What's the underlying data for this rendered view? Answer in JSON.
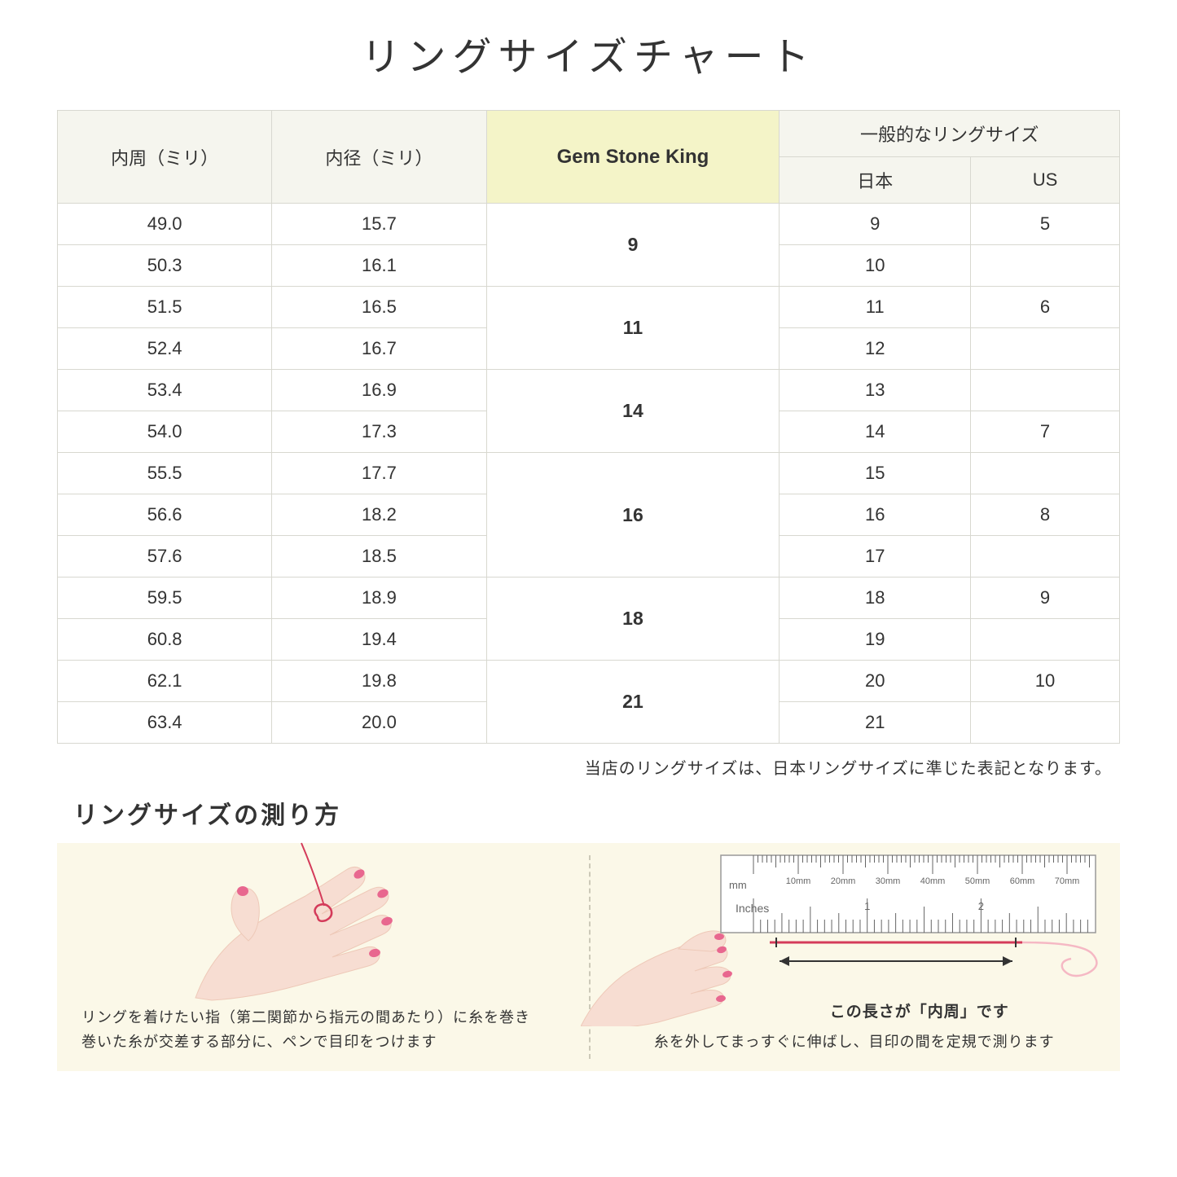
{
  "title": "リングサイズチャート",
  "table": {
    "headers": {
      "circumference": "内周（ミリ）",
      "diameter": "内径（ミリ）",
      "brand": "Gem Stone King",
      "general": "一般的なリングサイズ",
      "japan": "日本",
      "us": "US"
    },
    "groups": [
      {
        "brand": "9",
        "rows": [
          {
            "c": "49.0",
            "d": "15.7",
            "jp": "9",
            "us": "5"
          },
          {
            "c": "50.3",
            "d": "16.1",
            "jp": "10",
            "us": ""
          }
        ]
      },
      {
        "brand": "11",
        "rows": [
          {
            "c": "51.5",
            "d": "16.5",
            "jp": "11",
            "us": "6"
          },
          {
            "c": "52.4",
            "d": "16.7",
            "jp": "12",
            "us": ""
          }
        ]
      },
      {
        "brand": "14",
        "rows": [
          {
            "c": "53.4",
            "d": "16.9",
            "jp": "13",
            "us": ""
          },
          {
            "c": "54.0",
            "d": "17.3",
            "jp": "14",
            "us": "7"
          }
        ]
      },
      {
        "brand": "16",
        "rows": [
          {
            "c": "55.5",
            "d": "17.7",
            "jp": "15",
            "us": ""
          },
          {
            "c": "56.6",
            "d": "18.2",
            "jp": "16",
            "us": "8"
          },
          {
            "c": "57.6",
            "d": "18.5",
            "jp": "17",
            "us": ""
          }
        ]
      },
      {
        "brand": "18",
        "rows": [
          {
            "c": "59.5",
            "d": "18.9",
            "jp": "18",
            "us": "9"
          },
          {
            "c": "60.8",
            "d": "19.4",
            "jp": "19",
            "us": ""
          }
        ]
      },
      {
        "brand": "21",
        "rows": [
          {
            "c": "62.1",
            "d": "19.8",
            "jp": "20",
            "us": "10"
          },
          {
            "c": "63.4",
            "d": "20.0",
            "jp": "21",
            "us": ""
          }
        ]
      }
    ]
  },
  "note": "当店のリングサイズは、日本リングサイズに準じた表記となります。",
  "howto": {
    "title": "リングサイズの測り方",
    "left_caption_1": "リングを着けたい指（第二関節から指元の間あたり）に糸を巻き",
    "left_caption_2": "巻いた糸が交差する部分に、ペンで目印をつけます",
    "right_label": "この長さが「内周」です",
    "right_caption": "糸を外してまっすぐに伸ばし、目印の間を定規で測ります",
    "ruler_marks": [
      "10mm",
      "20mm",
      "30mm",
      "40mm",
      "50mm",
      "60mm",
      "70mm"
    ],
    "ruler_unit_mm": "mm",
    "ruler_unit_in": "Inches",
    "ruler_in_marks": [
      "1",
      "2"
    ]
  },
  "colors": {
    "header_bg": "#f5f5ee",
    "brand_bg": "#f4f4c8",
    "border": "#d8d8d0",
    "howto_bg": "#fbf8e8",
    "skin": "#f7ddd2",
    "skin_shade": "#eec9b8",
    "nail": "#e8678f",
    "thread": "#d43b5a",
    "ruler_fill": "#ffffff",
    "ruler_stroke": "#777",
    "arrow": "#333"
  }
}
